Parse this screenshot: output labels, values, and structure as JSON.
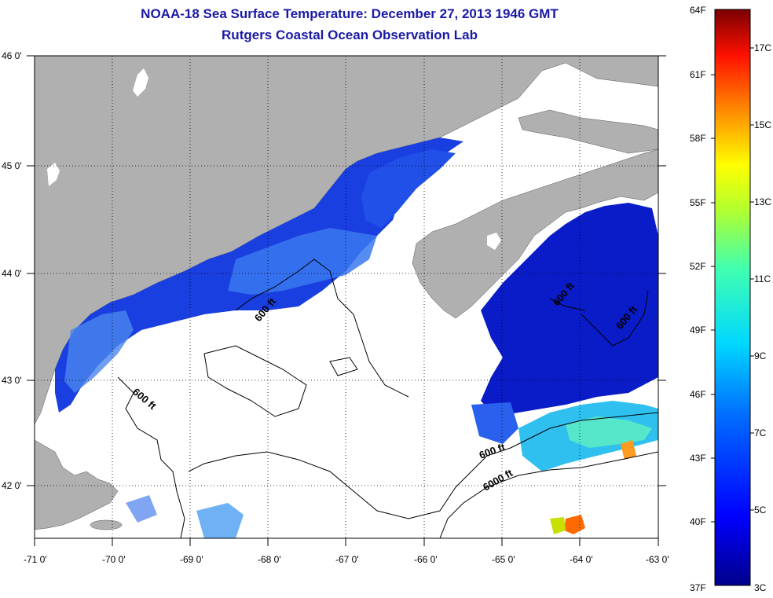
{
  "title_line1": "NOAA-18 Sea Surface Temperature:  December 27, 2013 1946 GMT",
  "title_line2": "Rutgers Coastal Ocean Observation Lab",
  "colors": {
    "land": "#b0b0b0",
    "cloud": "#ffffff",
    "contour": "#000000",
    "title": "#1a1aa6"
  },
  "map": {
    "lon_range": [
      -71,
      -63
    ],
    "lat_range": [
      41.5,
      46
    ],
    "lon_labels": [
      "-71 0'",
      "-70 0'",
      "-69 0'",
      "-68 0'",
      "-67 0'",
      "-66 0'",
      "-65 0'",
      "-64 0'",
      "-63 0'"
    ],
    "lat_labels": [
      "46 0'",
      "45 0'",
      "44 0'",
      "43 0'",
      "42 0'"
    ],
    "contour_labels": [
      "600 ft",
      "600 ft",
      "600 ft",
      "600 ft",
      "600 ft",
      "6000 ft"
    ]
  },
  "colorbar": {
    "range_f": [
      37,
      64
    ],
    "range_c": [
      3,
      18
    ],
    "f_labels": [
      "64F",
      "61F",
      "58F",
      "55F",
      "52F",
      "49F",
      "46F",
      "43F",
      "40F",
      "37F"
    ],
    "c_labels": [
      "17C",
      "15C",
      "13C",
      "11C",
      "9C",
      "7C",
      "5C",
      "3C"
    ]
  }
}
